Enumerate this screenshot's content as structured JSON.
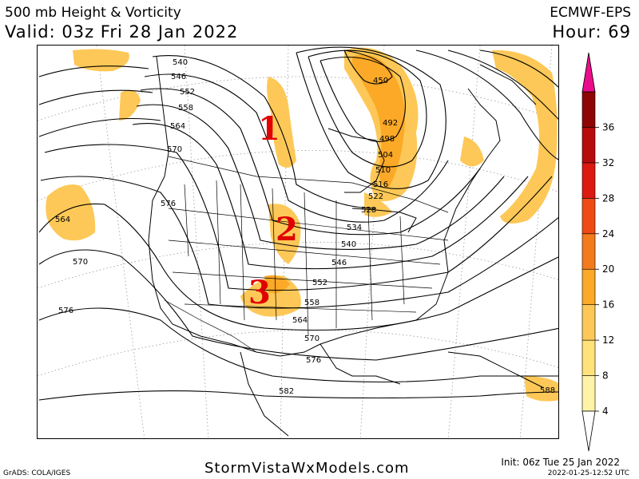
{
  "header": {
    "title": "500 mb Height & Vorticity",
    "valid": "Valid: 03z Fri 28 Jan 2022",
    "model": "ECMWF-EPS",
    "hour": "Hour: 69"
  },
  "footer": {
    "site": "StormVistaWxModels.com",
    "grads": "GrADS: COLA/IGES",
    "init": "Init: 06z Tue 25 Jan 2022",
    "stamp": "2022-01-25-12:52 UTC"
  },
  "annotations": [
    {
      "label": "1",
      "color": "#e00000"
    },
    {
      "label": "2",
      "color": "#e00000"
    },
    {
      "label": "3",
      "color": "#e00000"
    }
  ],
  "contour_labels": [
    "540",
    "546",
    "552",
    "558",
    "564",
    "570",
    "576",
    "564",
    "570",
    "576",
    "450",
    "492",
    "498",
    "504",
    "510",
    "516",
    "522",
    "528",
    "534",
    "540",
    "546",
    "552",
    "558",
    "564",
    "570",
    "576",
    "582",
    "588"
  ],
  "colorbar": {
    "ticks": [
      "4",
      "8",
      "12",
      "16",
      "20",
      "24",
      "28",
      "32",
      "36"
    ],
    "colors": [
      "#fff3a8",
      "#ffe27a",
      "#fdc857",
      "#fba927",
      "#f47a1c",
      "#ef4a14",
      "#dc1a12",
      "#b80c0c",
      "#8d0505",
      "#ea0d8b"
    ]
  }
}
